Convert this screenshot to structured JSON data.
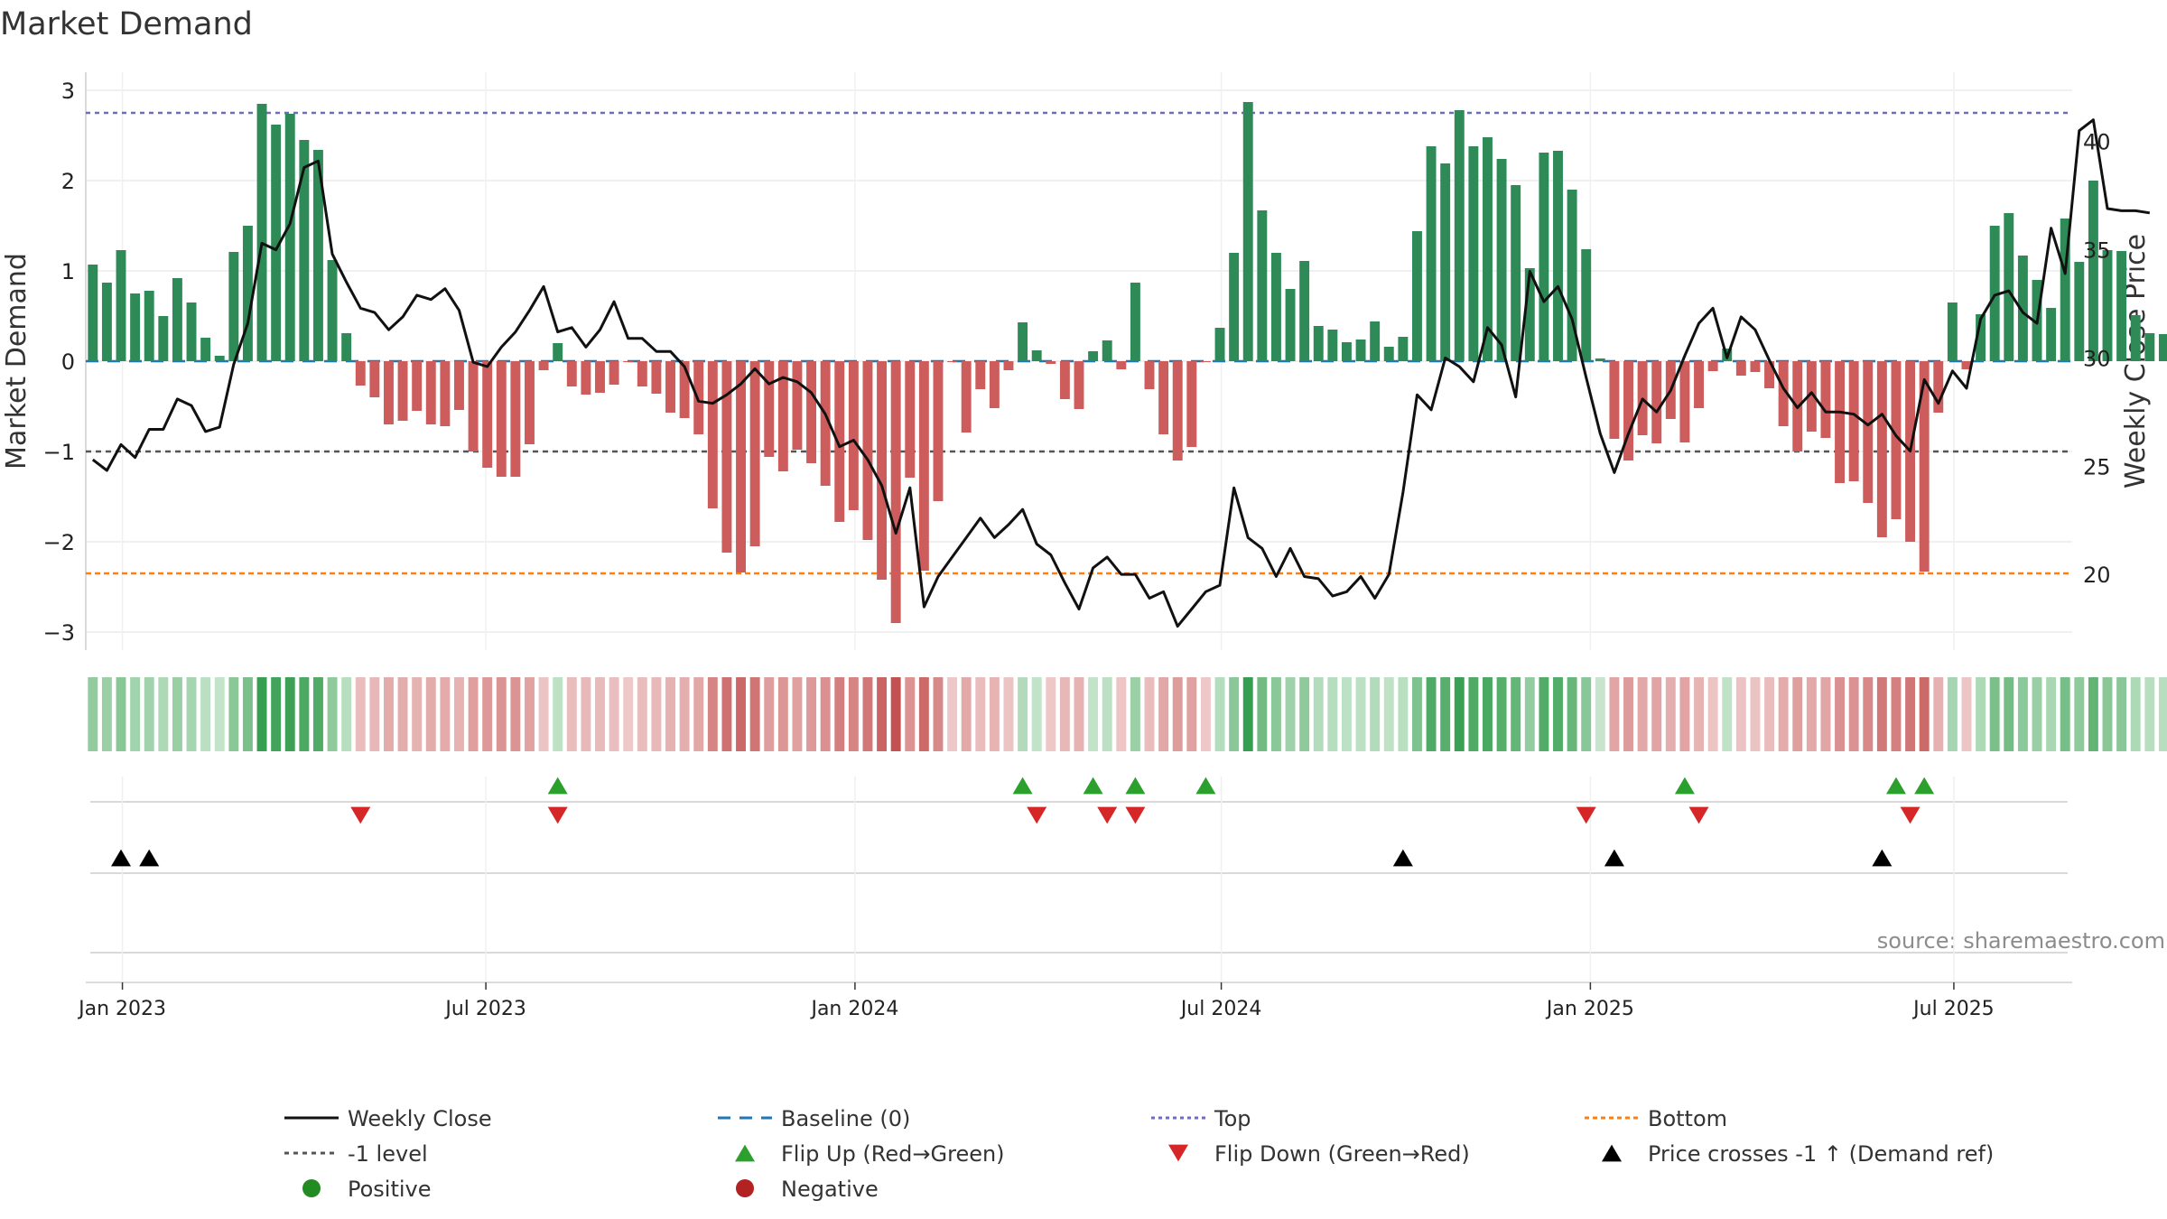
{
  "title": "Market Demand",
  "source": "source: sharemaestro.com",
  "colors": {
    "positive": "#2e8b57",
    "negative": "#cd5c5c",
    "close": "#111111",
    "baseline": "#1f77b4",
    "top": "#6b6bc7",
    "bottom": "#ff7f0e",
    "minus_one": "#555555",
    "flip_up": "#2ca02c",
    "flip_down": "#d62728",
    "cross": "#000000",
    "pos_dot": "#228b22",
    "neg_dot": "#b22222"
  },
  "chart_data": {
    "type": "bar",
    "title": "Market Demand",
    "ylabel": "Market Demand",
    "y2label": "Weekly Close Price",
    "ylim": [
      -3.2,
      3.2
    ],
    "y2lim": [
      16.5,
      43.2
    ],
    "yticks": [
      3,
      2,
      1,
      0,
      -1,
      -2,
      -3
    ],
    "ytick_labels": [
      "3",
      "2",
      "1",
      "0",
      "−1",
      "−2",
      "−3"
    ],
    "y2ticks": [
      40,
      35,
      30,
      25,
      20
    ],
    "x_start_week": 0,
    "x_end_week": 140,
    "xticks": [
      {
        "week": 2.1,
        "label": "Jan 2023"
      },
      {
        "week": 27.9,
        "label": "Jul 2023"
      },
      {
        "week": 54.1,
        "label": "Jan 2024"
      },
      {
        "week": 80.1,
        "label": "Jul 2024"
      },
      {
        "week": 106.3,
        "label": "Jan 2025"
      },
      {
        "week": 132.1,
        "label": "Jul 2025"
      }
    ],
    "reference_lines": {
      "top": 2.75,
      "bottom": -2.35,
      "minus_one": -1,
      "baseline": 0
    },
    "demand": [
      1.07,
      0.87,
      1.23,
      0.75,
      0.78,
      0.5,
      0.92,
      0.65,
      0.26,
      0.06,
      1.21,
      1.5,
      2.85,
      2.62,
      2.74,
      2.45,
      2.34,
      1.12,
      0.31,
      -0.27,
      -0.4,
      -0.7,
      -0.66,
      -0.55,
      -0.7,
      -0.72,
      -0.54,
      -1.0,
      -1.18,
      -1.28,
      -1.28,
      -0.92,
      -0.1,
      0.2,
      -0.28,
      -0.37,
      -0.35,
      -0.26,
      -0.01,
      -0.28,
      -0.36,
      -0.57,
      -0.63,
      -0.81,
      -1.63,
      -2.12,
      -2.34,
      -2.05,
      -1.06,
      -1.22,
      -0.98,
      -1.13,
      -1.38,
      -1.78,
      -1.65,
      -1.98,
      -2.42,
      -2.9,
      -1.29,
      -2.32,
      -1.55,
      -0.01,
      -0.79,
      -0.31,
      -0.52,
      -0.1,
      0.43,
      0.12,
      -0.03,
      -0.42,
      -0.53,
      0.11,
      0.23,
      -0.09,
      0.87,
      -0.31,
      -0.81,
      -1.1,
      -0.95,
      -0.01,
      0.37,
      1.2,
      2.87,
      1.67,
      1.2,
      0.8,
      1.11,
      0.39,
      0.35,
      0.21,
      0.24,
      0.44,
      0.16,
      0.27,
      1.44,
      2.38,
      2.19,
      2.78,
      2.38,
      2.48,
      2.24,
      1.95,
      1.03,
      2.31,
      2.33,
      1.9,
      1.24,
      0.03,
      -0.86,
      -1.1,
      -0.82,
      -0.91,
      -0.64,
      -0.9,
      -0.52,
      -0.11,
      0.14,
      -0.16,
      -0.12,
      -0.3,
      -0.72,
      -1.0,
      -0.78,
      -0.85,
      -1.35,
      -1.33,
      -1.57,
      -1.95,
      -1.75,
      -2.0,
      -2.33,
      -0.57,
      0.65,
      -0.09,
      0.52,
      1.5,
      1.64,
      1.17,
      0.9,
      0.59,
      1.58,
      1.1,
      2.0,
      1.23,
      1.22,
      0.51,
      0.31,
      0.3
    ],
    "close": [
      25.3,
      24.8,
      26.0,
      25.4,
      26.7,
      26.7,
      28.1,
      27.8,
      26.6,
      26.8,
      29.7,
      31.6,
      35.3,
      35.0,
      36.2,
      38.8,
      39.1,
      34.8,
      33.5,
      32.3,
      32.1,
      31.3,
      31.9,
      32.9,
      32.7,
      33.2,
      32.2,
      29.8,
      29.6,
      30.5,
      31.2,
      32.2,
      33.3,
      31.2,
      31.4,
      30.5,
      31.3,
      32.6,
      30.9,
      30.9,
      30.3,
      30.3,
      29.6,
      28.0,
      27.9,
      28.3,
      28.8,
      29.5,
      28.8,
      29.1,
      28.9,
      28.4,
      27.4,
      25.9,
      26.2,
      25.3,
      24.1,
      21.9,
      24.0,
      18.5,
      19.9,
      20.8,
      21.7,
      22.6,
      21.7,
      22.3,
      23.0,
      21.4,
      20.9,
      19.6,
      18.4,
      20.3,
      20.8,
      20.0,
      20.0,
      18.9,
      19.2,
      17.6,
      18.4,
      19.2,
      19.5,
      24.0,
      21.7,
      21.2,
      19.9,
      21.2,
      19.9,
      19.8,
      19.0,
      19.2,
      19.9,
      18.9,
      20.0,
      23.8,
      28.3,
      27.6,
      30.0,
      29.6,
      28.9,
      31.4,
      30.6,
      28.2,
      34.0,
      32.6,
      33.3,
      31.8,
      29.1,
      26.5,
      24.7,
      26.5,
      28.1,
      27.5,
      28.5,
      30.1,
      31.6,
      32.3,
      30.0,
      31.9,
      31.3,
      29.9,
      28.6,
      27.7,
      28.4,
      27.5,
      27.5,
      27.4,
      26.9,
      27.4,
      26.4,
      25.7,
      29.0,
      27.9,
      29.4,
      28.6,
      31.8,
      32.9,
      33.1,
      32.1,
      31.6,
      36.0,
      33.9,
      40.5,
      41.0,
      36.9,
      36.8,
      36.8,
      36.7
    ],
    "flip_up": [
      33,
      66,
      71,
      74,
      79,
      113,
      128,
      130
    ],
    "flip_down": [
      19,
      33,
      67,
      72,
      74,
      106,
      114,
      129
    ],
    "price_crosses": [
      2,
      4,
      93,
      108,
      127
    ],
    "legend": [
      {
        "key": "close",
        "label": "Weekly Close"
      },
      {
        "key": "baseline",
        "label": "Baseline (0)"
      },
      {
        "key": "top",
        "label": "Top"
      },
      {
        "key": "bottom",
        "label": "Bottom"
      },
      {
        "key": "minus_one",
        "label": "-1 level"
      },
      {
        "key": "flip_up",
        "label": "Flip Up (Red→Green)"
      },
      {
        "key": "flip_down",
        "label": "Flip Down (Green→Red)"
      },
      {
        "key": "cross",
        "label": "Price crosses -1 ↑ (Demand ref)"
      },
      {
        "key": "positive",
        "label": "Positive"
      },
      {
        "key": "negative",
        "label": "Negative"
      }
    ]
  }
}
